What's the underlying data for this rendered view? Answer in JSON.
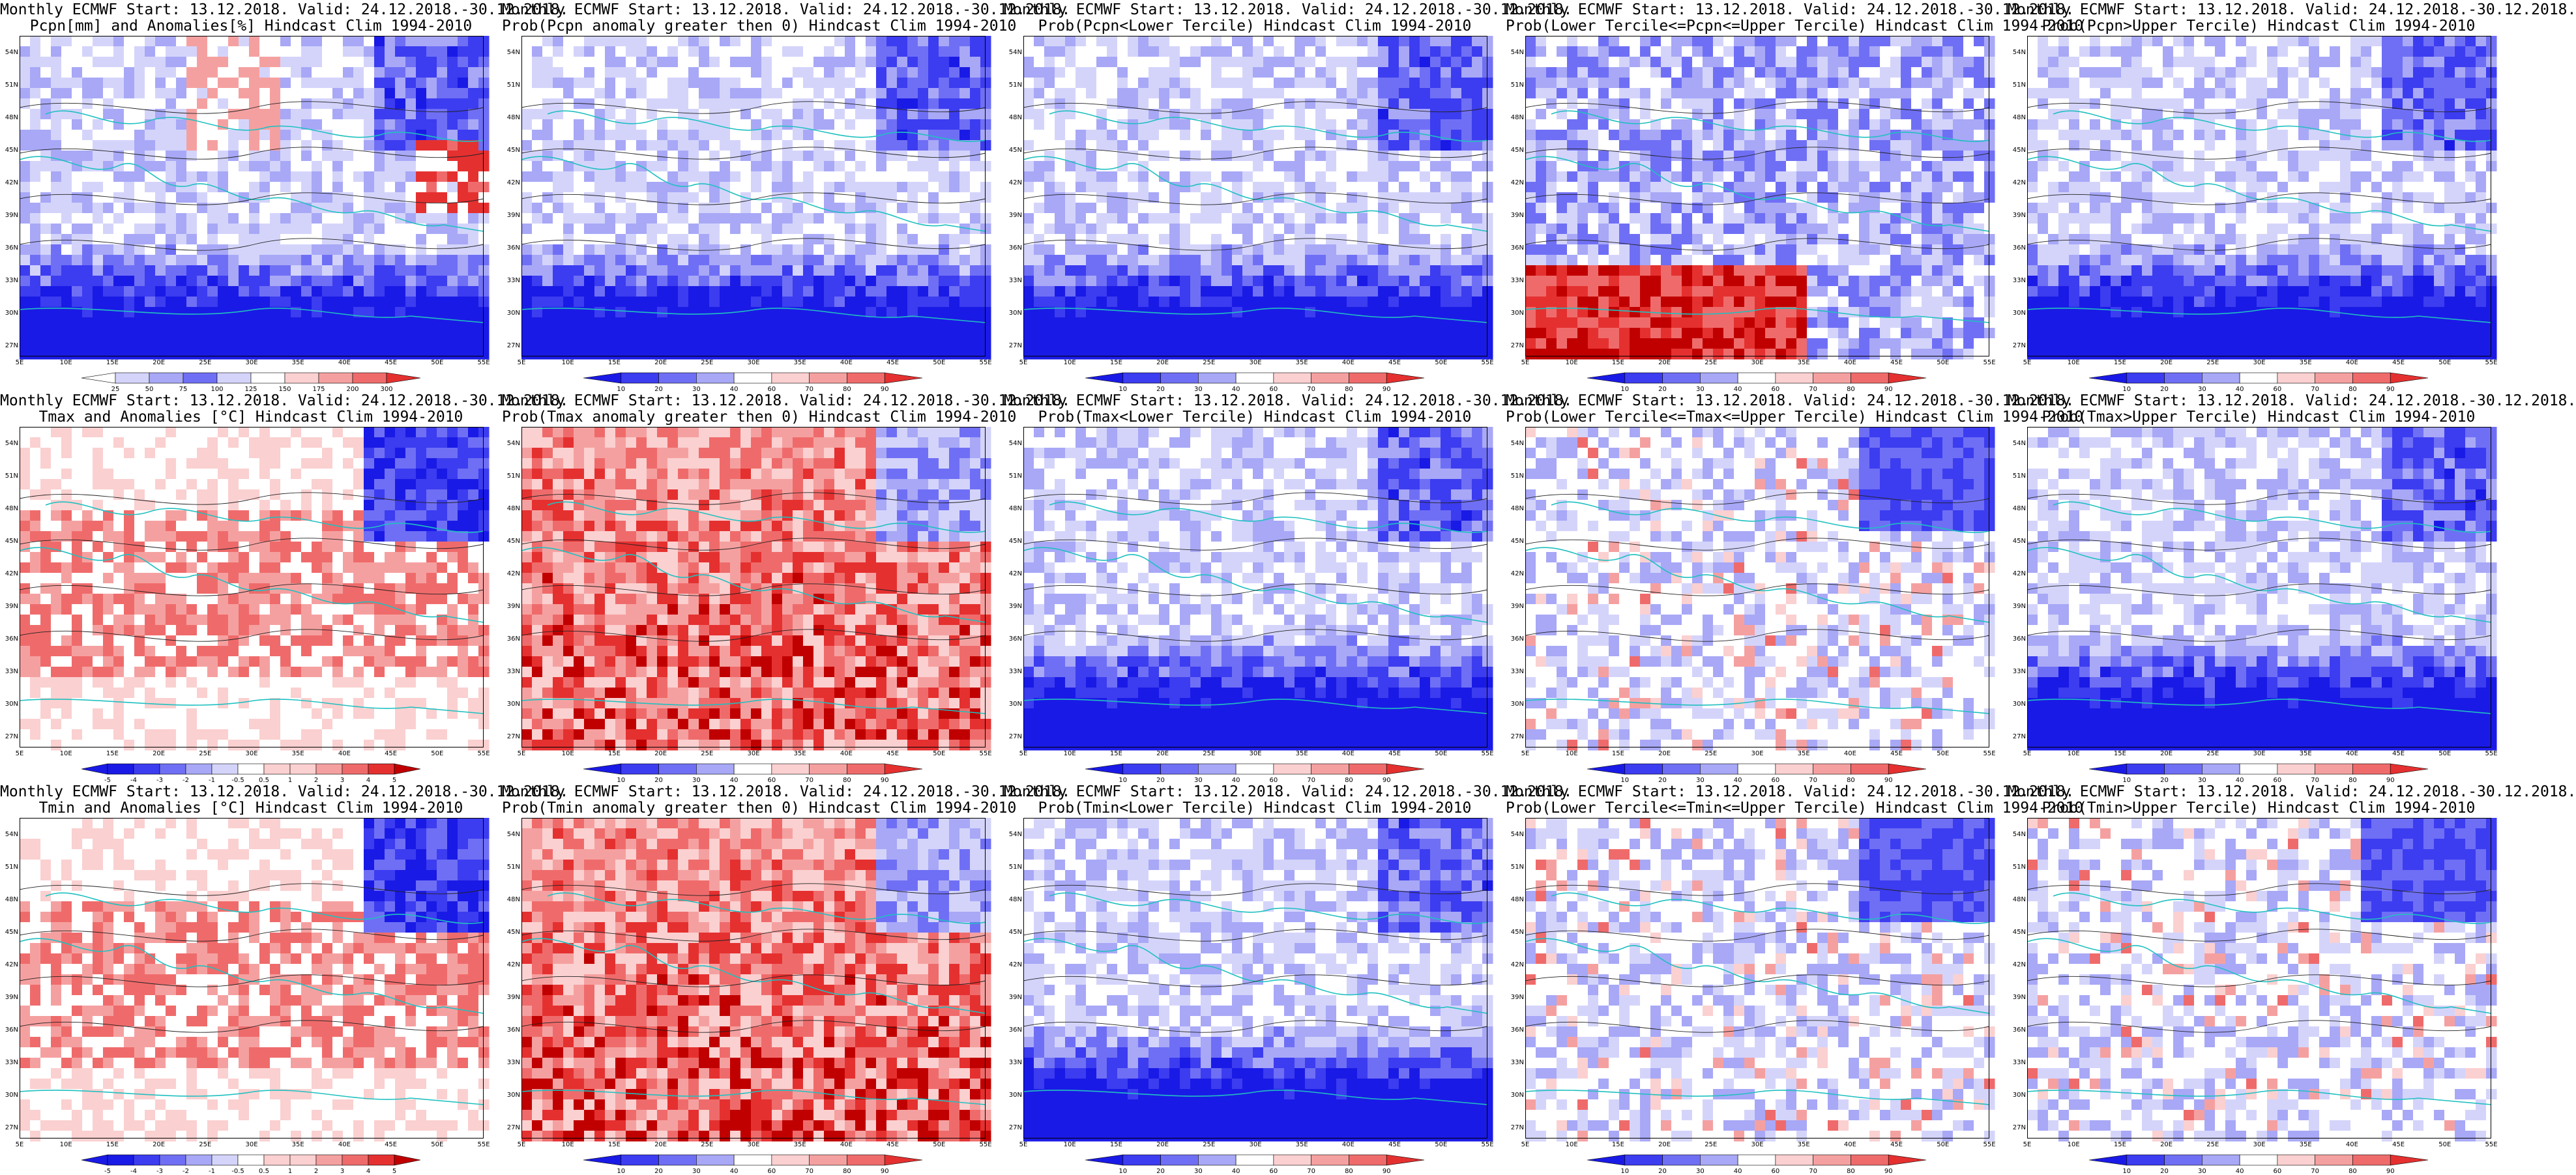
{
  "panels": [
    {
      "id": "r1c1",
      "title1": "Monthly ECMWF Start: 13.12.2018. Valid: 24.12.2018.-30.12.2018.",
      "title2": "Pcpn[mm] and Anomalies[%] Hindcast Clim 1994-2010",
      "scheme": "anom",
      "colorbar_ticks": [
        "25",
        "50",
        "75",
        "100",
        "125",
        "150",
        "175",
        "200",
        "300"
      ]
    },
    {
      "id": "r1c2",
      "title1": "Monthly ECMWF Start: 13.12.2018. Valid: 24.12.2018.-30.12.2018.",
      "title2": "Prob(Pcpn anomaly greater then 0) Hindcast Clim 1994-2010",
      "scheme": "blue",
      "colorbar_ticks": [
        "10",
        "20",
        "30",
        "40",
        "60",
        "70",
        "80",
        "90"
      ]
    },
    {
      "id": "r1c3",
      "title1": "Monthly ECMWF Start: 13.12.2018. Valid: 24.12.2018.-30.12.2018.",
      "title2": "Prob(Pcpn<Lower Tercile) Hindcast Clim 1994-2010",
      "scheme": "blue",
      "colorbar_ticks": [
        "10",
        "20",
        "30",
        "40",
        "60",
        "70",
        "80",
        "90"
      ]
    },
    {
      "id": "r1c4",
      "title1": "Monthly ECMWF Start: 13.12.2018. Valid: 24.12.2018.-30.12.2018.",
      "title2": "Prob(Lower Tercile<=Pcpn<=Upper Tercile) Hindcast Clim 1994-2010",
      "scheme": "redsouth",
      "colorbar_ticks": [
        "10",
        "20",
        "30",
        "40",
        "60",
        "70",
        "80",
        "90"
      ]
    },
    {
      "id": "r1c5",
      "title1": "Monthly ECMWF Start: 13.12.2018. Valid: 24.12.2018.-30.12.2018.",
      "title2": "Prob(Pcpn>Upper Tercile) Hindcast Clim 1994-2010",
      "scheme": "blue",
      "colorbar_ticks": [
        "10",
        "20",
        "30",
        "40",
        "60",
        "70",
        "80",
        "90"
      ]
    },
    {
      "id": "r2c1",
      "title1": "Monthly ECMWF Start: 13.12.2018. Valid: 24.12.2018.-30.12.2018.",
      "title2": "Tmax and Anomalies [°C] Hindcast Clim 1994-2010",
      "scheme": "warm",
      "colorbar_ticks": [
        "-5",
        "-4",
        "-3",
        "-2",
        "-1",
        "-0.5",
        "0.5",
        "1",
        "2",
        "3",
        "4",
        "5"
      ]
    },
    {
      "id": "r2c2",
      "title1": "Monthly ECMWF Start: 13.12.2018. Valid: 24.12.2018.-30.12.2018.",
      "title2": "Prob(Tmax anomaly greater then 0) Hindcast Clim 1994-2010",
      "scheme": "red",
      "colorbar_ticks": [
        "10",
        "20",
        "30",
        "40",
        "60",
        "70",
        "80",
        "90"
      ]
    },
    {
      "id": "r2c3",
      "title1": "Monthly ECMWF Start: 13.12.2018. Valid: 24.12.2018.-30.12.2018.",
      "title2": "Prob(Tmax<Lower Tercile) Hindcast Clim 1994-2010",
      "scheme": "blue",
      "colorbar_ticks": [
        "10",
        "20",
        "30",
        "40",
        "60",
        "70",
        "80",
        "90"
      ]
    },
    {
      "id": "r2c4",
      "title1": "Monthly ECMWF Start: 13.12.2018. Valid: 24.12.2018.-30.12.2018.",
      "title2": "Prob(Lower Tercile<=Tmax<=Upper Tercile) Hindcast Clim 1994-2010",
      "scheme": "light",
      "colorbar_ticks": [
        "10",
        "20",
        "30",
        "40",
        "60",
        "70",
        "80",
        "90"
      ]
    },
    {
      "id": "r2c5",
      "title1": "Monthly ECMWF Start: 13.12.2018. Valid: 24.12.2018.-30.12.2018.",
      "title2": "Prob(Tmax>Upper Tercile) Hindcast Clim 1994-2010",
      "scheme": "blue",
      "colorbar_ticks": [
        "10",
        "20",
        "30",
        "40",
        "60",
        "70",
        "80",
        "90"
      ]
    },
    {
      "id": "r3c1",
      "title1": "Monthly ECMWF Start: 13.12.2018. Valid: 24.12.2018.-30.12.2018.",
      "title2": "Tmin and Anomalies [°C] Hindcast Clim 1994-2010",
      "scheme": "warm",
      "colorbar_ticks": [
        "-5",
        "-4",
        "-3",
        "-2",
        "-1",
        "-0.5",
        "0.5",
        "1",
        "2",
        "3",
        "4",
        "5"
      ]
    },
    {
      "id": "r3c2",
      "title1": "Monthly ECMWF Start: 13.12.2018. Valid: 24.12.2018.-30.12.2018.",
      "title2": "Prob(Tmin anomaly greater then 0) Hindcast Clim 1994-2010",
      "scheme": "red",
      "colorbar_ticks": [
        "10",
        "20",
        "30",
        "40",
        "60",
        "70",
        "80",
        "90"
      ]
    },
    {
      "id": "r3c3",
      "title1": "Monthly ECMWF Start: 13.12.2018. Valid: 24.12.2018.-30.12.2018.",
      "title2": "Prob(Tmin<Lower Tercile) Hindcast Clim 1994-2010",
      "scheme": "blue",
      "colorbar_ticks": [
        "10",
        "20",
        "30",
        "40",
        "60",
        "70",
        "80",
        "90"
      ]
    },
    {
      "id": "r3c4",
      "title1": "Monthly ECMWF Start: 13.12.2018. Valid: 24.12.2018.-30.12.2018.",
      "title2": "Prob(Lower Tercile<=Tmin<=Upper Tercile) Hindcast Clim 1994-2010",
      "scheme": "light",
      "colorbar_ticks": [
        "10",
        "20",
        "30",
        "40",
        "60",
        "70",
        "80",
        "90"
      ]
    },
    {
      "id": "r3c5",
      "title1": "Monthly ECMWF Start: 13.12.2018. Valid: 24.12.2018.-30.12.2018.",
      "title2": "Prob(Tmin>Upper Tercile) Hindcast Clim 1994-2010",
      "scheme": "light",
      "colorbar_ticks": [
        "10",
        "20",
        "30",
        "40",
        "60",
        "70",
        "80",
        "90"
      ]
    }
  ],
  "lat_ticks": [
    "54N",
    "51N",
    "48N",
    "45N",
    "42N",
    "39N",
    "36N",
    "33N",
    "30N",
    "27N"
  ],
  "lon_ticks": [
    "5E",
    "10E",
    "15E",
    "20E",
    "25E",
    "30E",
    "35E",
    "40E",
    "45E",
    "50E",
    "55E"
  ],
  "colors": {
    "deep_blue": "#1a1ae6",
    "blue": "#3c3cf0",
    "mid_blue": "#6f6ff5",
    "light_blue": "#a8a8f7",
    "pale_blue": "#d4d4fb",
    "white": "#ffffff",
    "pale_red": "#fbd0d0",
    "light_red": "#f5a0a0",
    "mid_red": "#ef6b6b",
    "red": "#e53030",
    "deep_red": "#c00000",
    "coast": "#20c0c0",
    "contour": "#222222"
  }
}
